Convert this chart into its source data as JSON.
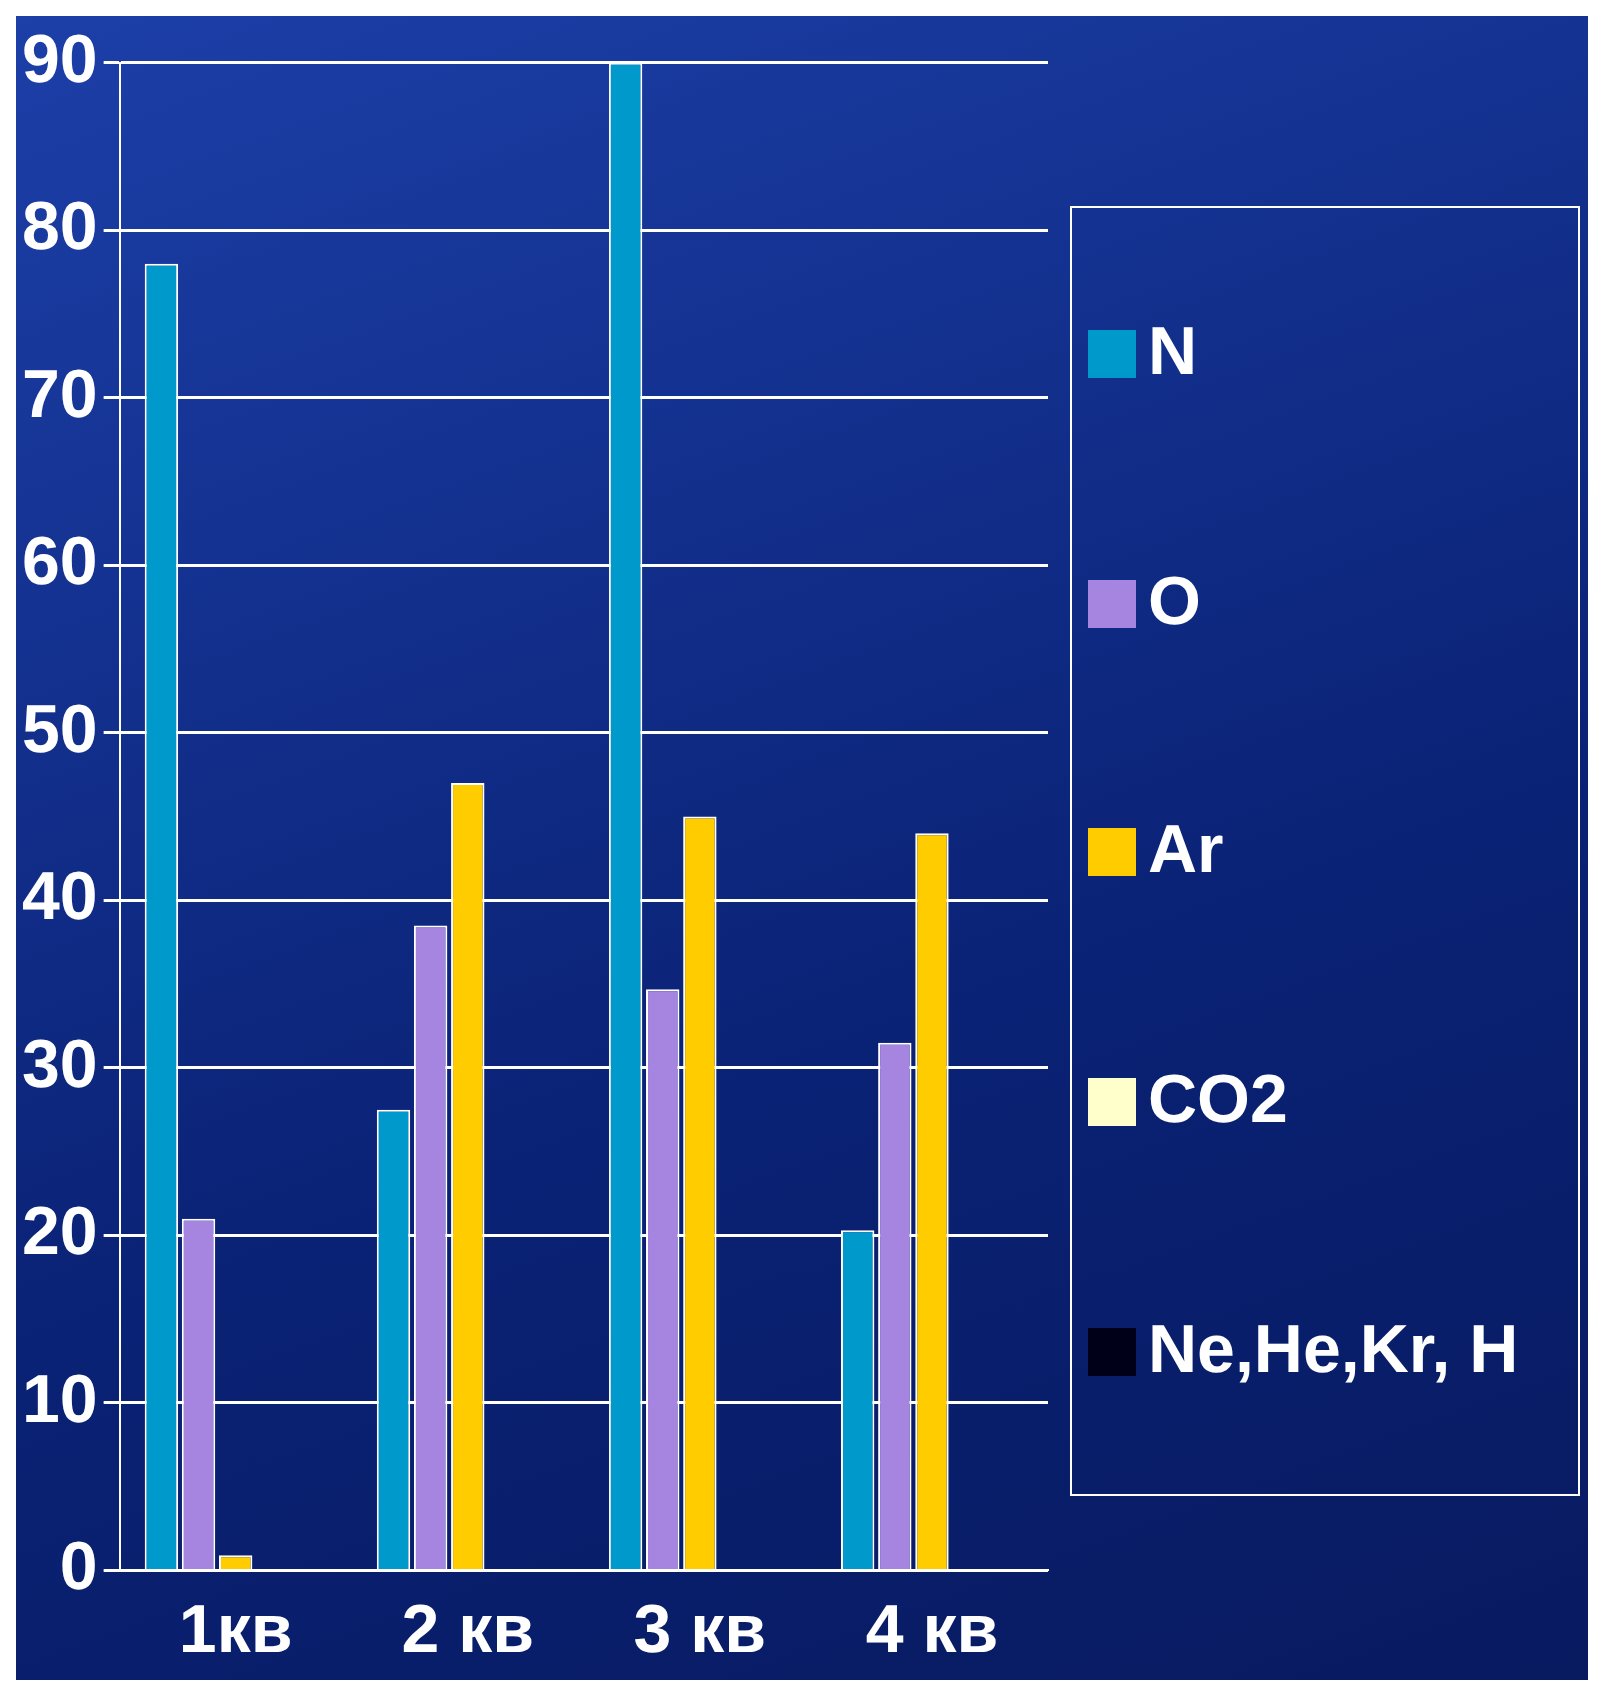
{
  "chart_data": {
    "type": "bar",
    "categories": [
      "1кв",
      "2 кв",
      "3 кв",
      "4 кв"
    ],
    "series": [
      {
        "name": "N",
        "color": "#0099cc",
        "values": [
          78,
          27.5,
          90,
          20.3
        ]
      },
      {
        "name": "O",
        "color": "#a585e0",
        "values": [
          21,
          38.5,
          34.7,
          31.5
        ]
      },
      {
        "name": "Ar",
        "color": "#ffcc00",
        "values": [
          0.9,
          47,
          45,
          44
        ]
      },
      {
        "name": "CO2",
        "color": "#ffffcc",
        "values": [
          0,
          0,
          0,
          0
        ]
      },
      {
        "name": "Ne,He,Kr, H",
        "color": "#000018",
        "values": [
          0,
          0,
          0,
          0
        ]
      }
    ],
    "ylim": [
      0,
      90
    ],
    "yticks": [
      0,
      10,
      20,
      30,
      40,
      50,
      60,
      70,
      80,
      90
    ],
    "grid": "y",
    "legend": "right"
  }
}
